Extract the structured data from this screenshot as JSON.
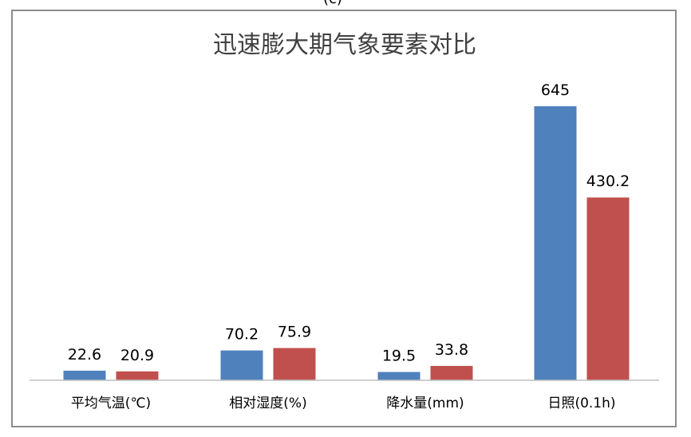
{
  "top_label": "(c)",
  "chart_data": {
    "type": "bar",
    "title": "迅速膨大期气象要素对比",
    "categories": [
      "平均气温(℃)",
      "相对湿度(%)",
      "降水量(mm)",
      "日照(0.1h)"
    ],
    "series": [
      {
        "color": "#4f81bd",
        "values": [
          22.6,
          70.2,
          19.5,
          645
        ]
      },
      {
        "color": "#c0504d",
        "values": [
          20.9,
          75.9,
          33.8,
          430.2
        ]
      }
    ],
    "value_labels": [
      [
        "22.6",
        "70.2",
        "19.5",
        "645"
      ],
      [
        "20.9",
        "75.9",
        "33.8",
        "430.2"
      ]
    ],
    "ylim": [
      0,
      645
    ],
    "grid": false,
    "legend": "none"
  }
}
